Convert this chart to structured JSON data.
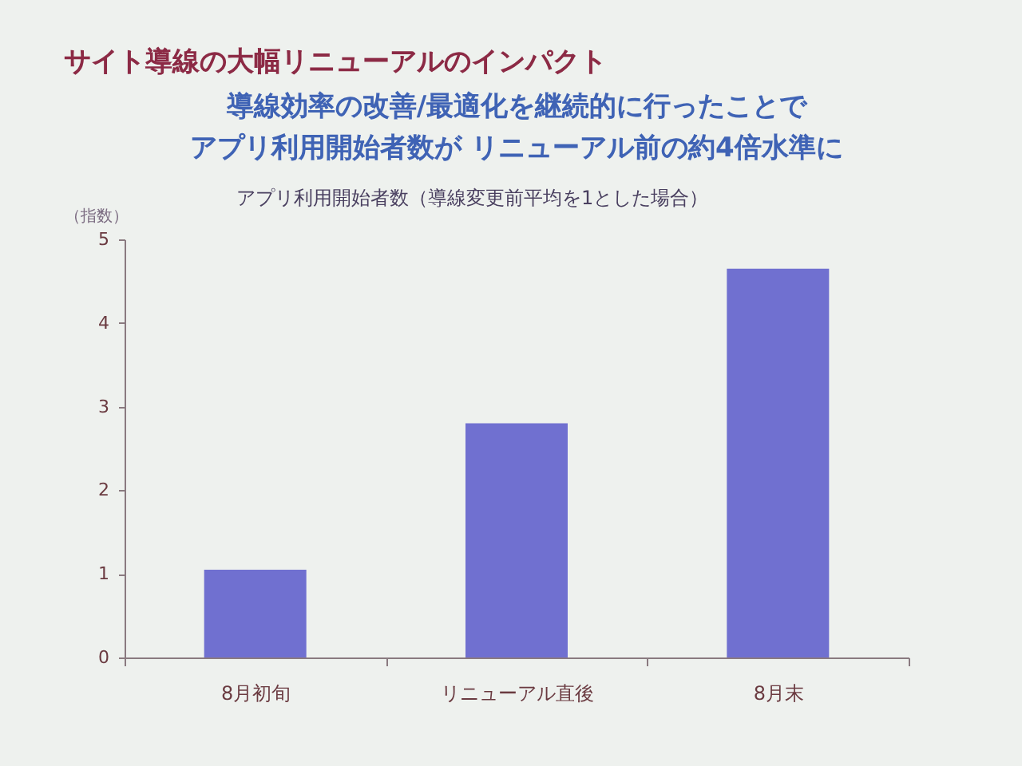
{
  "chart_data": {
    "type": "bar",
    "title": "サイト導線の大幅リニューアルのインパクト",
    "subtitle": "導線効率の改善/最適化を継続的に行ったことで",
    "annotations": [
      "アプリ利用開始者数が リニューアル前の約4倍水準に",
      "アプリ利用開始者数（導線変更前平均を1とした場合）"
    ],
    "ylabel": "（指数）",
    "categories": [
      "8月初旬",
      "リニューアル直後",
      "8月末"
    ],
    "values": [
      1.05,
      2.8,
      4.65
    ],
    "color": "#7070d0",
    "ylim": [
      0,
      5
    ],
    "yticks": [
      0,
      1,
      2,
      3,
      4,
      5
    ]
  }
}
